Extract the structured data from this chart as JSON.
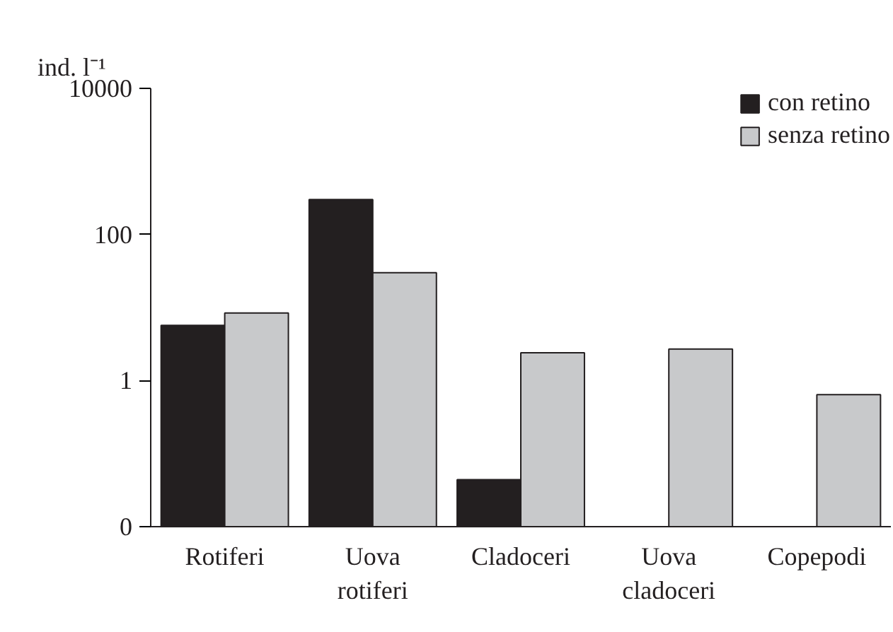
{
  "chart_data": {
    "type": "bar",
    "ylabel": "ind. l⁻¹",
    "log": true,
    "categories": [
      "Rotiferi",
      "Uova rotiferi",
      "Cladoceri",
      "Uova cladoceri",
      "Copepodi"
    ],
    "series": [
      {
        "name": "con retino",
        "color": "#231f20",
        "values": [
          5.7,
          300,
          0.044,
          null,
          null
        ]
      },
      {
        "name": "senza retino",
        "color": "#c8c9cb",
        "values": [
          8.4,
          30,
          2.4,
          2.7,
          0.64
        ]
      }
    ],
    "ylim": [
      0.01,
      10000
    ],
    "yticks": [
      {
        "value": 0.01,
        "label": "0"
      },
      1,
      100,
      10000
    ],
    "grid": false,
    "legend": "top right"
  }
}
